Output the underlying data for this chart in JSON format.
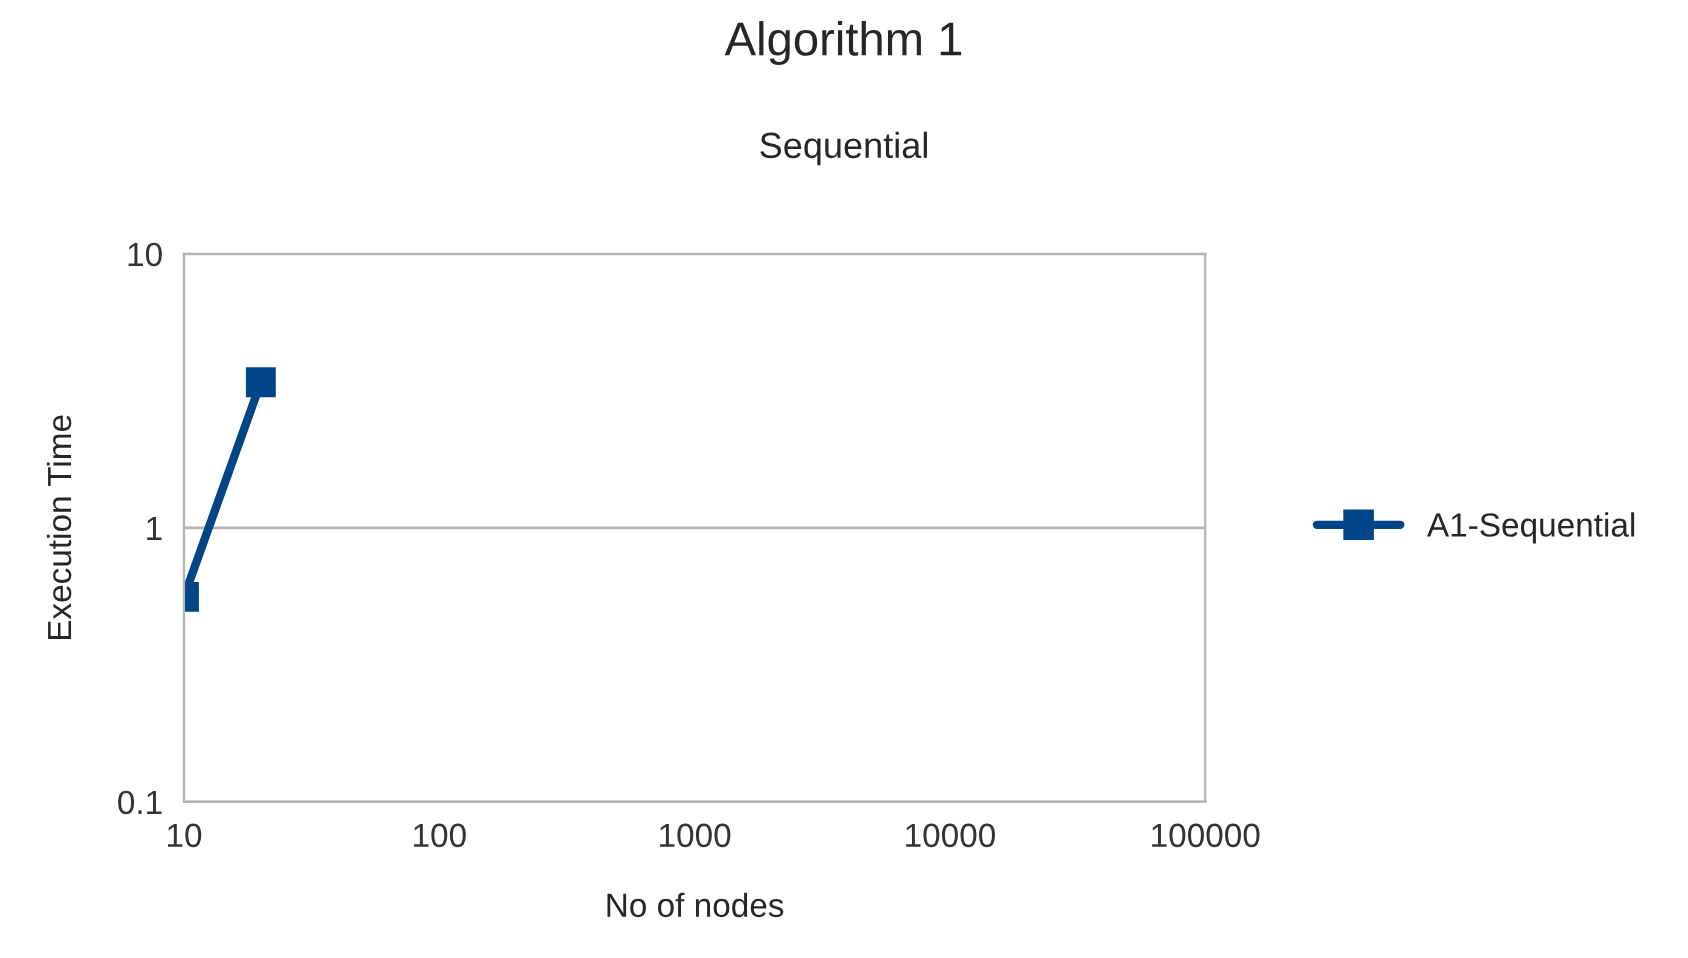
{
  "chart_data": {
    "type": "line",
    "title": "Algorithm 1",
    "subtitle": "Sequential",
    "xlabel": "No of nodes",
    "ylabel": "Execution Time",
    "x": [
      10,
      20
    ],
    "series": [
      {
        "name": "A1-Sequential",
        "color": "#004586",
        "values": [
          0.56,
          3.4
        ]
      }
    ],
    "log": "xy",
    "xlim": [
      10,
      100000
    ],
    "xticks": [
      10,
      100,
      1000,
      10000,
      100000
    ],
    "ylim": [
      0.1,
      10
    ],
    "yticks": [
      0.1,
      1,
      10
    ],
    "grid": "y",
    "legend": "right",
    "marker": "square",
    "line_style": "solid"
  }
}
